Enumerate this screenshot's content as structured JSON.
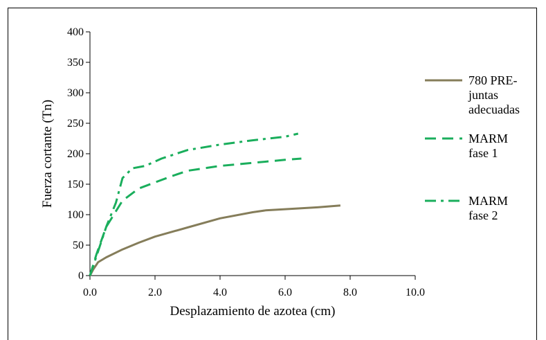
{
  "chart_data": {
    "type": "line",
    "xlabel": "Desplazamiento de azotea (cm)",
    "ylabel": "Fuerza cortante (Tn)",
    "xlim": [
      0,
      10
    ],
    "ylim": [
      0,
      400
    ],
    "xticks": [
      "0.0",
      "2.0",
      "4.0",
      "6.0",
      "8.0",
      "10.0"
    ],
    "yticks": [
      "0",
      "50",
      "100",
      "150",
      "200",
      "250",
      "300",
      "350",
      "400"
    ],
    "grid": false,
    "legend_position": "right",
    "series": [
      {
        "name": "780 PRE-juntas adecuadas",
        "legend_lines": [
          "780 PRE-",
          "juntas",
          "adecuadas"
        ],
        "color": "#857d5a",
        "style": "solid",
        "x": [
          0,
          0.1,
          0.25,
          0.5,
          1.0,
          1.5,
          2.0,
          3.0,
          4.0,
          5.0,
          5.4,
          6.0,
          7.0,
          7.7
        ],
        "y": [
          0,
          10,
          22,
          30,
          43,
          54,
          64,
          79,
          94,
          104,
          107,
          109,
          112,
          115
        ]
      },
      {
        "name": "MARM fase 1",
        "legend_lines": [
          "MARM",
          "fase 1"
        ],
        "color": "#1aae5c",
        "style": "dash",
        "x": [
          0,
          0.2,
          0.5,
          1.0,
          1.5,
          2.0,
          2.5,
          3.0,
          4.0,
          5.0,
          6.0,
          6.5
        ],
        "y": [
          0,
          35,
          80,
          123,
          143,
          153,
          163,
          172,
          180,
          185,
          190,
          192
        ]
      },
      {
        "name": "MARM fase 2",
        "legend_lines": [
          "MARM",
          "fase 2"
        ],
        "color": "#1aae5c",
        "style": "dashdot",
        "x": [
          0,
          0.25,
          0.5,
          0.8,
          1.0,
          1.3,
          1.7,
          2.2,
          3.0,
          4.0,
          5.0,
          6.0,
          6.4
        ],
        "y": [
          0,
          40,
          80,
          120,
          160,
          176,
          180,
          192,
          206,
          215,
          222,
          228,
          233
        ]
      }
    ]
  }
}
